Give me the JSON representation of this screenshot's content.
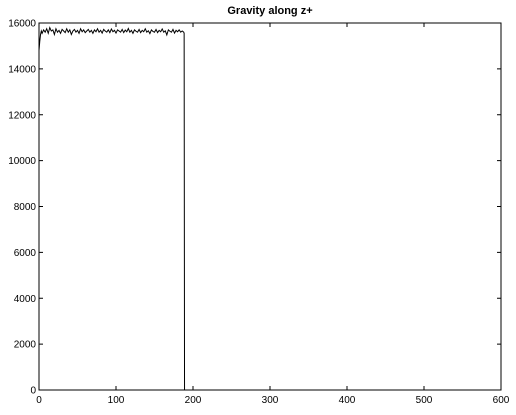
{
  "chart_data": {
    "type": "line",
    "title": "Gravity along z+",
    "xlabel": "",
    "ylabel": "",
    "xlim": [
      0,
      600
    ],
    "ylim": [
      0,
      16000
    ],
    "xticks": [
      0,
      100,
      200,
      300,
      400,
      500,
      600
    ],
    "yticks": [
      0,
      2000,
      4000,
      6000,
      8000,
      10000,
      12000,
      14000,
      16000
    ],
    "grid": false,
    "legend": "none",
    "line_color": "#000000",
    "series": [
      {
        "x": [
          0,
          1,
          2,
          3,
          4,
          6,
          8,
          10,
          12,
          14,
          16,
          18,
          20,
          22,
          24,
          26,
          28,
          30,
          32,
          34,
          36,
          38,
          40,
          42,
          44,
          46,
          48,
          50,
          52,
          54,
          56,
          58,
          60,
          62,
          64,
          66,
          68,
          70,
          72,
          74,
          76,
          78,
          80,
          82,
          84,
          86,
          88,
          90,
          92,
          94,
          96,
          98,
          100,
          102,
          104,
          106,
          108,
          110,
          112,
          114,
          116,
          118,
          120,
          122,
          124,
          126,
          128,
          130,
          132,
          134,
          136,
          138,
          140,
          142,
          144,
          146,
          148,
          150,
          152,
          154,
          156,
          158,
          160,
          162,
          164,
          166,
          168,
          170,
          172,
          174,
          176,
          178,
          180,
          182,
          184,
          186,
          188,
          188.5,
          189
        ],
        "values": [
          14800,
          15200,
          15500,
          15650,
          15550,
          15700,
          15600,
          15750,
          15550,
          15800,
          15650,
          15700,
          15500,
          15750,
          15600,
          15680,
          15550,
          15720,
          15650,
          15580,
          15750,
          15600,
          15700,
          15500,
          15650,
          15720,
          15600,
          15680,
          15550,
          15750,
          15620,
          15700,
          15580,
          15650,
          15720,
          15600,
          15680,
          15550,
          15700,
          15620,
          15750,
          15600,
          15680,
          15560,
          15720,
          15650,
          15600,
          15700,
          15580,
          15740,
          15620,
          15680,
          15560,
          15700,
          15650,
          15600,
          15720,
          15580,
          15690,
          15620,
          15760,
          15600,
          15680,
          15550,
          15700,
          15640,
          15600,
          15720,
          15580,
          15680,
          15620,
          15750,
          15600,
          15660,
          15540,
          15700,
          15630,
          15600,
          15720,
          15580,
          15680,
          15620,
          15740,
          15600,
          15660,
          15480,
          15700,
          15640,
          15600,
          15720,
          15560,
          15680,
          15620,
          15700,
          15600,
          15650,
          15600,
          15550,
          0
        ]
      }
    ]
  }
}
